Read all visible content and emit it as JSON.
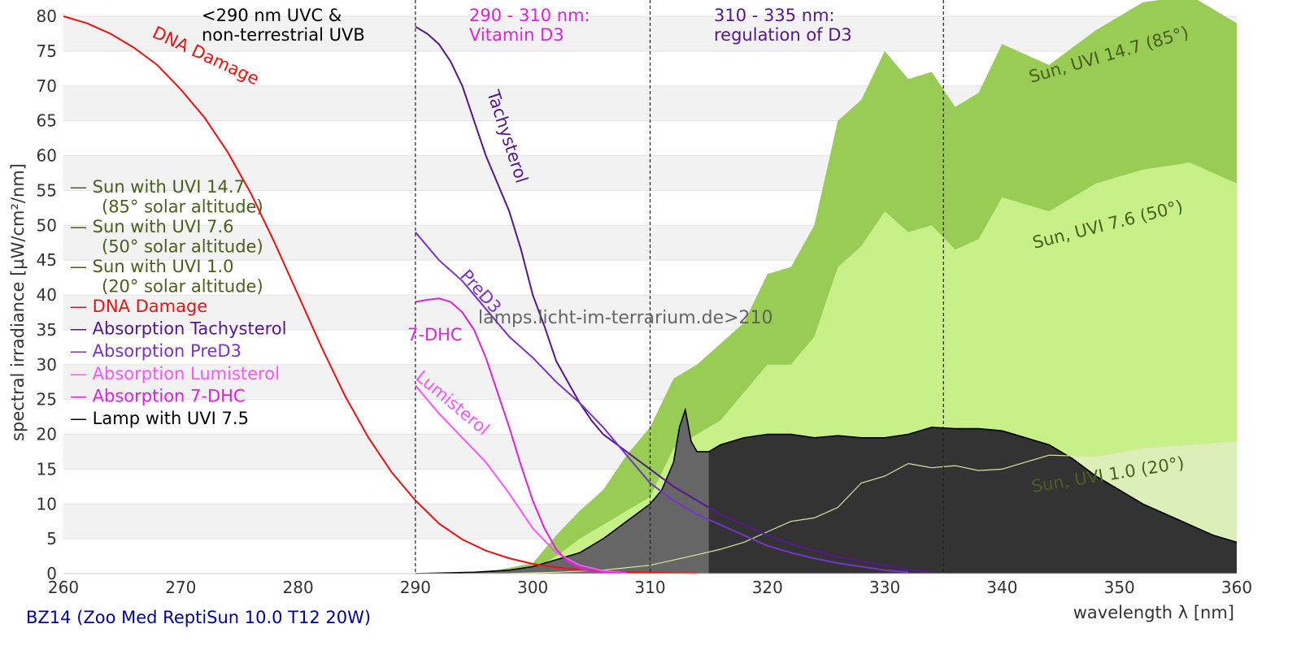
{
  "chart_data": {
    "type": "area",
    "title": "",
    "xlabel": "wavelength λ [nm]",
    "ylabel": "spectral irradiance [µW/cm²/nm]",
    "footer": "BZ14 (Zoo Med ReptiSun 10.0 T12 20W)",
    "watermark": "lamps.licht-im-terrarium.de>210",
    "xlim": [
      260,
      360
    ],
    "ylim": [
      0,
      80
    ],
    "x_ticks": [
      260,
      270,
      280,
      290,
      300,
      310,
      320,
      330,
      340,
      350,
      360
    ],
    "y_ticks": [
      0,
      5,
      10,
      15,
      20,
      25,
      30,
      35,
      40,
      45,
      50,
      55,
      60,
      65,
      70,
      75,
      80
    ],
    "grid": "horizontal bands",
    "legend_position": "left",
    "region_lines": [
      290,
      310,
      335
    ],
    "region_labels": [
      {
        "lines": [
          "<290 nm UVC &",
          "non-terrestrial UVB"
        ],
        "color": "#000000"
      },
      {
        "lines": [
          "290 - 310 nm:",
          "Vitamin D3"
        ],
        "color": "#dd22dd"
      },
      {
        "lines": [
          "310 - 335 nm:",
          "regulation of D3"
        ],
        "color": "#55188a"
      }
    ],
    "legend": [
      {
        "lines": [
          "— Sun with UVI 14.7",
          "(85° solar altitude)"
        ],
        "color": "#4a5e1e"
      },
      {
        "lines": [
          "— Sun with UVI 7.6",
          "(50° solar altitude)"
        ],
        "color": "#4a5e1e"
      },
      {
        "lines": [
          "— Sun with UVI 1.0",
          "(20° solar altitude)"
        ],
        "color": "#4a5e1e"
      },
      {
        "lines": [
          "— DNA Damage"
        ],
        "color": "#ee1111"
      },
      {
        "lines": [
          "— Absorption Tachysterol"
        ],
        "color": "#55188a"
      },
      {
        "lines": [
          "— Absorption PreD3"
        ],
        "color": "#7733cc"
      },
      {
        "lines": [
          "— Absorption Lumisterol"
        ],
        "color": "#ff55ff"
      },
      {
        "lines": [
          "— Absorption 7-DHC"
        ],
        "color": "#dd22dd"
      },
      {
        "lines": [
          "— Lamp with UVI 7.5"
        ],
        "color": "#000000"
      }
    ],
    "curve_labels": {
      "dna": "DNA Damage",
      "tachysterol": "Tachysterol",
      "pred3": "PreD3",
      "dhc": "7-DHC",
      "lumisterol": "Lumisterol",
      "sun147": "Sun, UVI 14.7 (85°)",
      "sun76": "Sun, UVI 7.6 (50°)",
      "sun10": "Sun, UVI 1.0 (20°)"
    },
    "colors": {
      "sun147": "#99cc55",
      "sun76": "#c8f088",
      "sun10": "#dcefb8",
      "lamp_total": "#333333",
      "lamp_uvb": "#666666",
      "lamp_outline": "#000000",
      "sun_label": "#4a5e1e",
      "dna": "#ee1111",
      "tachysterol": "#55188a",
      "pred3": "#7733cc",
      "lumisterol": "#ff55ff",
      "dhc": "#dd22dd",
      "footer": "#000099"
    },
    "series": [
      {
        "key": "sun147",
        "kind": "area",
        "x": [
          294,
          297,
          300,
          302,
          304,
          306,
          308,
          310,
          312,
          314,
          316,
          318,
          320,
          322,
          324,
          326,
          328,
          330,
          332,
          334,
          336,
          338,
          340,
          344,
          348,
          352,
          356,
          360
        ],
        "values": [
          0.1,
          0.5,
          1.5,
          5.5,
          9,
          12,
          17,
          21,
          28,
          30,
          33,
          36,
          43,
          44,
          50,
          65,
          68,
          75,
          71,
          72,
          67,
          69,
          76,
          73,
          78,
          82,
          83,
          79
        ]
      },
      {
        "key": "sun76",
        "kind": "area",
        "x": [
          294,
          297,
          300,
          302,
          304,
          306,
          308,
          310,
          312,
          314,
          316,
          318,
          320,
          322,
          324,
          326,
          328,
          330,
          332,
          334,
          336,
          338,
          340,
          344,
          348,
          352,
          356,
          360
        ],
        "values": [
          0.05,
          0.2,
          0.6,
          2.5,
          5,
          7,
          9,
          11,
          18,
          20,
          22,
          26,
          30,
          30,
          34,
          44,
          47,
          52,
          49,
          50,
          46.5,
          48,
          54,
          52,
          56,
          58,
          59,
          56
        ]
      },
      {
        "key": "sun10",
        "kind": "area",
        "x": [
          294,
          298,
          302,
          306,
          310,
          314,
          316,
          318,
          320,
          322,
          324,
          326,
          328,
          330,
          332,
          334,
          336,
          338,
          340,
          344,
          348,
          352,
          356,
          360
        ],
        "values": [
          0,
          0.02,
          0.2,
          0.5,
          1.2,
          2.7,
          3.5,
          4.5,
          6,
          7.5,
          8,
          9.5,
          13,
          14,
          15.8,
          15.2,
          15.5,
          14.8,
          15,
          17,
          16.8,
          18,
          18.5,
          19
        ]
      },
      {
        "key": "lamp",
        "kind": "area",
        "x": [
          290,
          295,
          298,
          300,
          302,
          304,
          306,
          308,
          310,
          311,
          312,
          312.5,
          313,
          313.5,
          314,
          315,
          316,
          318,
          320,
          322,
          324,
          326,
          328,
          330,
          332,
          334,
          336,
          338,
          340,
          342,
          344,
          346,
          348,
          350,
          352,
          354,
          356,
          358,
          360
        ],
        "values": [
          0,
          0.2,
          0.5,
          1,
          2,
          3,
          5,
          7.5,
          10,
          12,
          16,
          21,
          23.5,
          19,
          17.5,
          17.5,
          18.5,
          19.5,
          20,
          20,
          19.5,
          19.8,
          19.5,
          19.5,
          20,
          21,
          20.8,
          20.8,
          20.5,
          19.5,
          18.5,
          16.5,
          14,
          12,
          10,
          8.5,
          7,
          5.5,
          4.5
        ]
      },
      {
        "key": "dna",
        "kind": "line",
        "x": [
          260,
          262,
          264,
          266,
          268,
          270,
          272,
          274,
          276,
          278,
          280,
          282,
          284,
          286,
          288,
          290,
          292,
          294,
          296,
          298,
          300,
          302,
          304,
          306,
          308,
          310,
          312,
          314
        ],
        "values": [
          80,
          79,
          77.5,
          75.5,
          73,
          69.5,
          65.5,
          60.5,
          54.5,
          47.5,
          40,
          32.5,
          25.5,
          19.5,
          14.5,
          10.5,
          7.2,
          4.9,
          3.3,
          2.2,
          1.4,
          0.9,
          0.55,
          0.35,
          0.2,
          0.12,
          0.07,
          0.03
        ]
      },
      {
        "key": "tachysterol",
        "kind": "line",
        "x": [
          290,
          291,
          292,
          293,
          294,
          295,
          296,
          297,
          298,
          299,
          300,
          301,
          302,
          303,
          304,
          305,
          306,
          308,
          310,
          312,
          314,
          316,
          318,
          320,
          322,
          324,
          326,
          328,
          330,
          332,
          334
        ],
        "values": [
          78.5,
          77.5,
          76,
          73.5,
          70,
          65,
          60,
          56,
          52,
          46.5,
          40,
          35.5,
          30.5,
          27.5,
          24.5,
          22,
          20,
          17.5,
          15,
          12.5,
          10.5,
          8.5,
          7,
          5.5,
          4.3,
          3.3,
          2.4,
          1.8,
          1.2,
          0.6,
          0.2
        ]
      },
      {
        "key": "pred3",
        "kind": "line",
        "x": [
          290,
          292,
          294,
          296,
          298,
          300,
          302,
          304,
          306,
          308,
          310,
          312,
          314,
          316,
          318,
          320,
          322,
          324,
          326,
          328,
          330,
          332
        ],
        "values": [
          49,
          45,
          42,
          38,
          34,
          31,
          27.5,
          24.5,
          21,
          17,
          13,
          10.5,
          8.5,
          7,
          5.5,
          4,
          3,
          2.2,
          1.5,
          1,
          0.5,
          0.2
        ]
      },
      {
        "key": "lumisterol",
        "kind": "line",
        "x": [
          290,
          292,
          294,
          296,
          298,
          300,
          302,
          304,
          306,
          308
        ],
        "values": [
          27,
          23,
          19.5,
          16,
          11.5,
          6.5,
          3,
          1.2,
          0.4,
          0.1
        ]
      },
      {
        "key": "dhc",
        "kind": "line",
        "x": [
          290,
          291,
          292,
          293,
          294,
          295,
          296,
          297,
          298,
          299,
          300,
          301,
          302,
          303,
          304,
          305,
          306,
          307,
          308
        ],
        "values": [
          39,
          39.3,
          39.5,
          39,
          37.5,
          35,
          31,
          26,
          21,
          15.5,
          10.5,
          6.5,
          3.5,
          1.7,
          0.8,
          0.4,
          0.2,
          0.1,
          0.05
        ]
      }
    ]
  }
}
